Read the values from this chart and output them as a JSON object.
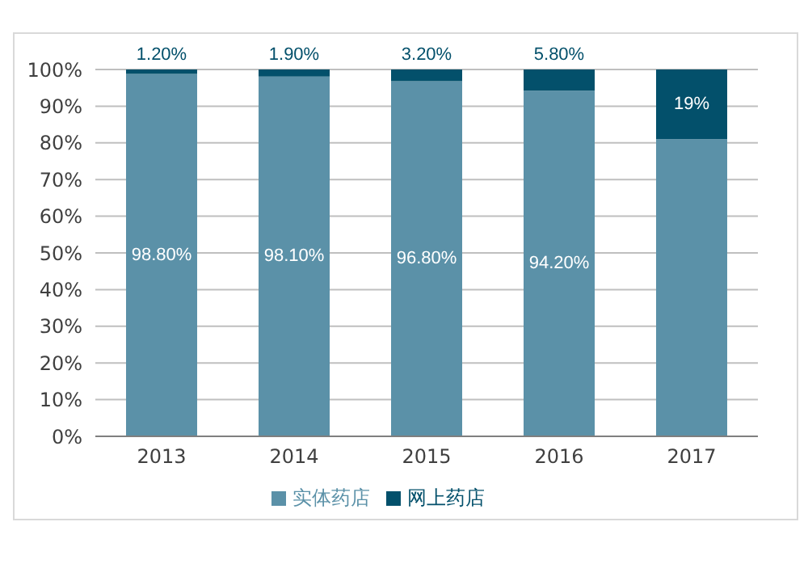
{
  "chart_data": {
    "type": "bar",
    "stacked": true,
    "categories": [
      "2013",
      "2014",
      "2015",
      "2016",
      "2017"
    ],
    "series": [
      {
        "name": "实体药店",
        "color": "#5b91a8",
        "values": [
          98.8,
          98.1,
          96.8,
          94.2,
          81
        ],
        "value_labels": [
          "98.80%",
          "98.10%",
          "96.80%",
          "94.20%",
          null
        ]
      },
      {
        "name": "网上药店",
        "color": "#03506b",
        "values": [
          1.2,
          1.9,
          3.2,
          5.8,
          19
        ],
        "value_labels": [
          "1.20%",
          "1.90%",
          "3.20%",
          "5.80%",
          "19%"
        ]
      }
    ],
    "ylim": [
      0,
      100
    ],
    "yticks": [
      {
        "value": 0,
        "label": "0%"
      },
      {
        "value": 10,
        "label": "10%"
      },
      {
        "value": 20,
        "label": "20%"
      },
      {
        "value": 30,
        "label": "30%"
      },
      {
        "value": 40,
        "label": "40%"
      },
      {
        "value": 50,
        "label": "50%"
      },
      {
        "value": 60,
        "label": "60%"
      },
      {
        "value": 70,
        "label": "70%"
      },
      {
        "value": 80,
        "label": "80%"
      },
      {
        "value": 90,
        "label": "90%"
      },
      {
        "value": 100,
        "label": "100%"
      }
    ],
    "grid": "y",
    "legend": "bottom"
  }
}
